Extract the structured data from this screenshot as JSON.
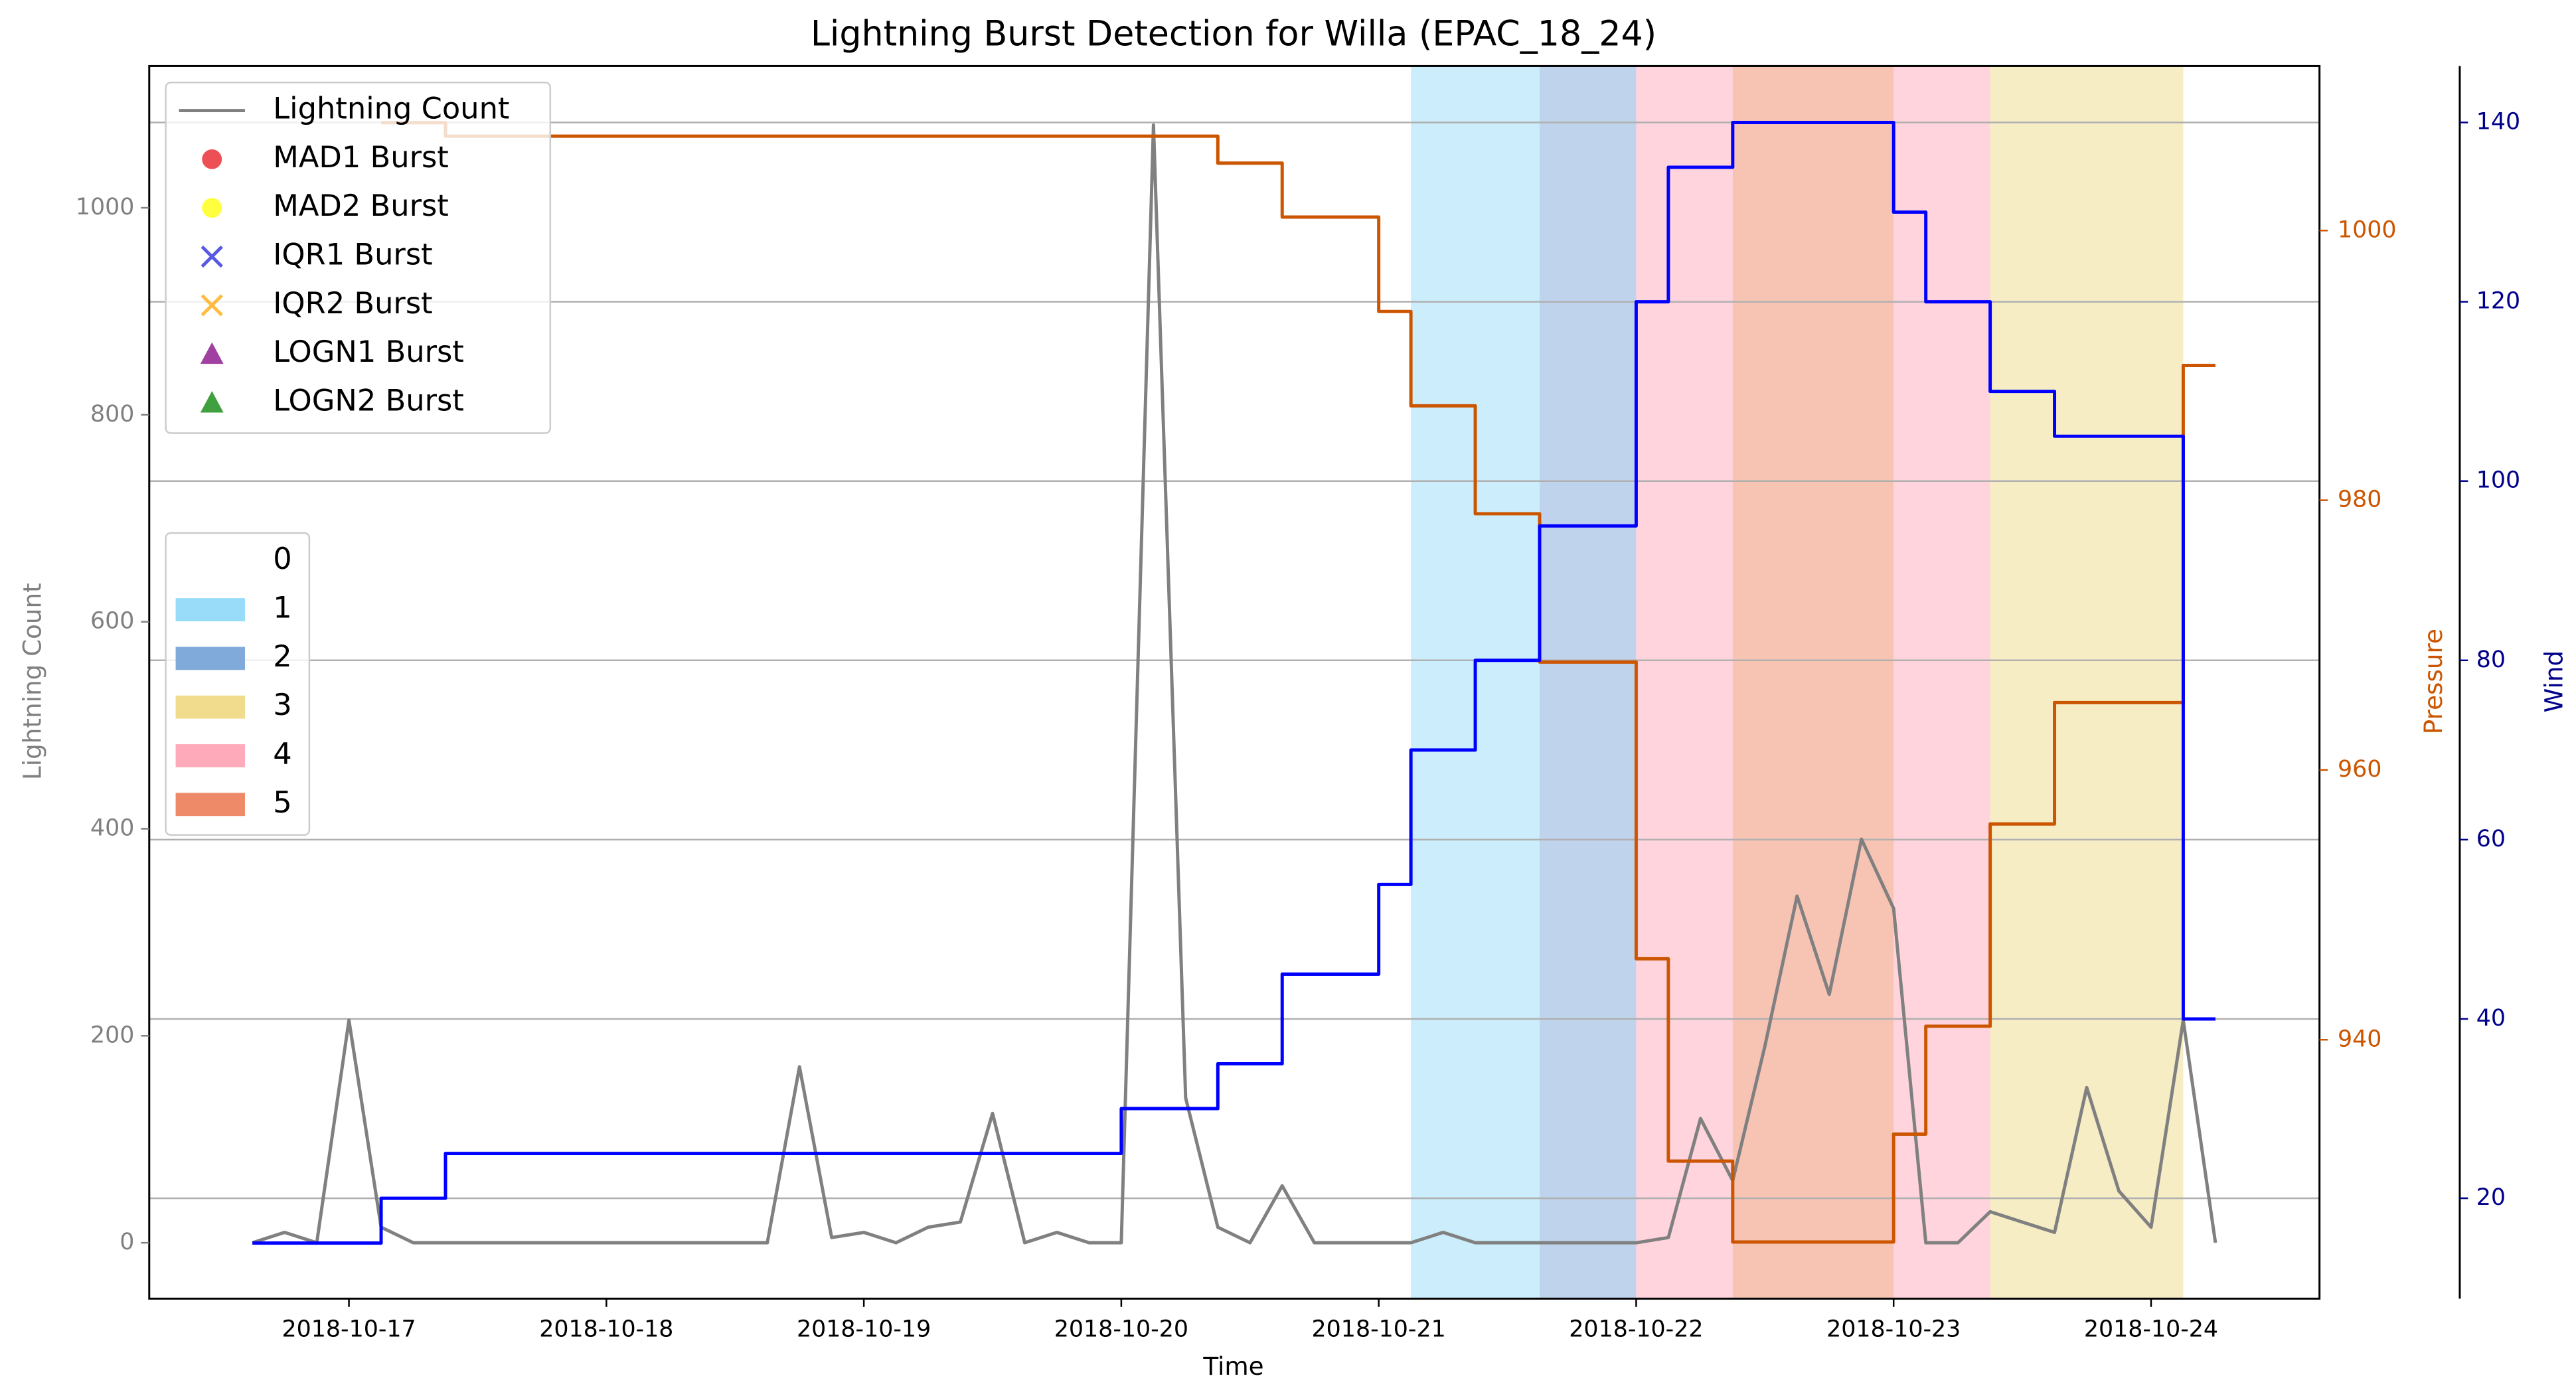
{
  "chart_data": {
    "type": "line",
    "title": "Lightning Burst Detection for Willa (EPAC_18_24)",
    "xlabel": "Time",
    "x": [
      "2018-10-16 15:00",
      "2018-10-16 18:00",
      "2018-10-16 21:00",
      "2018-10-17 00:00",
      "2018-10-17 03:00",
      "2018-10-17 06:00",
      "2018-10-17 09:00",
      "2018-10-17 12:00",
      "2018-10-17 15:00",
      "2018-10-17 18:00",
      "2018-10-17 21:00",
      "2018-10-18 00:00",
      "2018-10-18 03:00",
      "2018-10-18 06:00",
      "2018-10-18 09:00",
      "2018-10-18 12:00",
      "2018-10-18 15:00",
      "2018-10-18 18:00",
      "2018-10-18 21:00",
      "2018-10-19 00:00",
      "2018-10-19 03:00",
      "2018-10-19 06:00",
      "2018-10-19 09:00",
      "2018-10-19 12:00",
      "2018-10-19 15:00",
      "2018-10-19 18:00",
      "2018-10-19 21:00",
      "2018-10-20 00:00",
      "2018-10-20 03:00",
      "2018-10-20 06:00",
      "2018-10-20 09:00",
      "2018-10-20 12:00",
      "2018-10-20 15:00",
      "2018-10-20 18:00",
      "2018-10-20 21:00",
      "2018-10-21 00:00",
      "2018-10-21 03:00",
      "2018-10-21 06:00",
      "2018-10-21 09:00",
      "2018-10-21 12:00",
      "2018-10-21 15:00",
      "2018-10-21 18:00",
      "2018-10-21 21:00",
      "2018-10-22 00:00",
      "2018-10-22 03:00",
      "2018-10-22 06:00",
      "2018-10-22 09:00",
      "2018-10-22 12:00",
      "2018-10-22 15:00",
      "2018-10-22 18:00",
      "2018-10-22 21:00",
      "2018-10-23 00:00",
      "2018-10-23 03:00",
      "2018-10-23 06:00",
      "2018-10-23 09:00",
      "2018-10-23 12:00",
      "2018-10-23 15:00",
      "2018-10-23 18:00",
      "2018-10-23 21:00",
      "2018-10-24 00:00",
      "2018-10-24 03:00",
      "2018-10-24 06:00"
    ],
    "xlim": [
      "2018-10-16 05:23",
      "2018-10-24 15:42"
    ],
    "xticks": [
      "2018-10-17",
      "2018-10-18",
      "2018-10-19",
      "2018-10-20",
      "2018-10-21",
      "2018-10-22",
      "2018-10-23",
      "2018-10-24"
    ],
    "ylim": [
      -54,
      1137
    ],
    "yticks": [
      0,
      200,
      400,
      600,
      800,
      1000
    ],
    "y2lim": [
      920.8,
      1012.2
    ],
    "y2ticks": [
      940,
      960,
      980,
      1000
    ],
    "y3lim": [
      8.8,
      146.3
    ],
    "y3ticks": [
      20,
      40,
      60,
      80,
      100,
      120,
      140
    ],
    "grid": "y3",
    "legend_position": "upper left",
    "series": [
      {
        "name": "Lightning Count",
        "color": "#808080",
        "axis": "y",
        "in_legend": true,
        "values": [
          0,
          10,
          0,
          215,
          15,
          0,
          0,
          0,
          0,
          0,
          0,
          0,
          0,
          0,
          0,
          0,
          0,
          170,
          5,
          10,
          0,
          15,
          20,
          125,
          0,
          10,
          0,
          0,
          1080,
          140,
          15,
          0,
          55,
          0,
          0,
          0,
          0,
          10,
          0,
          0,
          0,
          0,
          0,
          0,
          5,
          120,
          60,
          190,
          335,
          240,
          390,
          323,
          0,
          0,
          30,
          20,
          10,
          150,
          50,
          15,
          215,
          0
        ]
      },
      {
        "name": "Pressure",
        "color": "#cc5500",
        "axis": "y2",
        "in_legend": false,
        "drawstyle": "steps-post",
        "values": [
          null,
          null,
          null,
          null,
          1008,
          1008,
          1007,
          1007,
          1007,
          1007,
          1007,
          1007,
          1007,
          1007,
          1007,
          1007,
          1007,
          1007,
          1007,
          1007,
          1007,
          1007,
          1007,
          1007,
          1007,
          1007,
          1007,
          1007,
          1007,
          1007,
          1005,
          1005,
          1001,
          1001,
          1001,
          994,
          987,
          987,
          979,
          979,
          968,
          968,
          968,
          946,
          931,
          931,
          925,
          925,
          925,
          925,
          925,
          933,
          941,
          941,
          956,
          956,
          965,
          965,
          965,
          965,
          990,
          990
        ]
      },
      {
        "name": "Wind",
        "color": "#0000ff",
        "axis": "y3",
        "in_legend": false,
        "drawstyle": "steps-post",
        "label_color": "#00008b",
        "values": [
          15,
          15,
          15,
          15,
          20,
          20,
          25,
          25,
          25,
          25,
          25,
          25,
          25,
          25,
          25,
          25,
          25,
          25,
          25,
          25,
          25,
          25,
          25,
          25,
          25,
          25,
          25,
          30,
          30,
          30,
          35,
          35,
          45,
          45,
          45,
          55,
          70,
          70,
          80,
          80,
          95,
          95,
          95,
          120,
          135,
          135,
          140,
          140,
          140,
          140,
          140,
          130,
          120,
          120,
          110,
          110,
          105,
          105,
          105,
          105,
          40,
          40
        ]
      }
    ],
    "burst_legend": [
      {
        "name": "MAD1 Burst",
        "color": "#e8141c",
        "marker": "circle"
      },
      {
        "name": "MAD2 Burst",
        "color": "#ffff00",
        "marker": "circle"
      },
      {
        "name": "IQR1 Burst",
        "color": "#2222dd",
        "marker": "x"
      },
      {
        "name": "IQR2 Burst",
        "color": "#ffa500",
        "marker": "x"
      },
      {
        "name": "LOGN1 Burst",
        "color": "#800080",
        "marker": "triangle"
      },
      {
        "name": "LOGN2 Burst",
        "color": "#008000",
        "marker": "triangle"
      }
    ],
    "intensity_legend": {
      "categories": [
        0,
        1,
        2,
        3,
        4,
        5
      ],
      "colors": [
        null,
        "#98dcfa",
        "#7faad9",
        "#f0dc8c",
        "#ffaabb",
        "#ef8a69"
      ]
    },
    "intensity_spans": [
      {
        "category": 1,
        "start": "2018-10-21 03:00",
        "end": "2018-10-21 15:00"
      },
      {
        "category": 2,
        "start": "2018-10-21 15:00",
        "end": "2018-10-22 00:00"
      },
      {
        "category": 4,
        "start": "2018-10-22 00:00",
        "end": "2018-10-22 09:00"
      },
      {
        "category": 5,
        "start": "2018-10-22 09:00",
        "end": "2018-10-23 00:00"
      },
      {
        "category": 4,
        "start": "2018-10-23 00:00",
        "end": "2018-10-23 09:00"
      },
      {
        "category": 3,
        "start": "2018-10-23 09:00",
        "end": "2018-10-24 03:00"
      }
    ]
  }
}
